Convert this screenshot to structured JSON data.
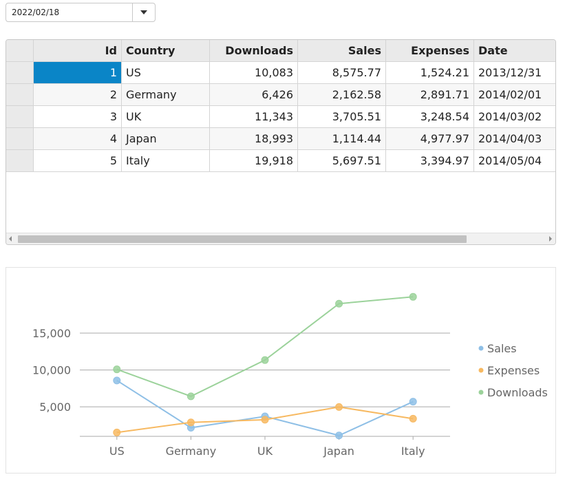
{
  "datepicker": {
    "value": "2022/02/18"
  },
  "grid": {
    "columns": [
      "Id",
      "Country",
      "Downloads",
      "Sales",
      "Expenses",
      "Date"
    ],
    "rows": [
      [
        "1",
        "US",
        "10,083",
        "8,575.77",
        "1,524.21",
        "2013/12/31"
      ],
      [
        "2",
        "Germany",
        "6,426",
        "2,162.58",
        "2,891.71",
        "2014/02/01"
      ],
      [
        "3",
        "UK",
        "11,343",
        "3,705.51",
        "3,248.54",
        "2014/03/02"
      ],
      [
        "4",
        "Japan",
        "18,993",
        "1,114.44",
        "4,977.97",
        "2014/04/03"
      ],
      [
        "5",
        "Italy",
        "19,918",
        "5,697.51",
        "3,394.97",
        "2014/05/04"
      ]
    ],
    "selected_color": "#0a85c7"
  },
  "chart_data": {
    "type": "line",
    "categories": [
      "US",
      "Germany",
      "UK",
      "Japan",
      "Italy"
    ],
    "series": [
      {
        "name": "Sales",
        "values": [
          8575.77,
          2162.58,
          3705.51,
          1114.44,
          5697.51
        ],
        "color": "#8ebfe6"
      },
      {
        "name": "Expenses",
        "values": [
          1524.21,
          2891.71,
          3248.54,
          4977.97,
          3394.97
        ],
        "color": "#f7b961"
      },
      {
        "name": "Downloads",
        "values": [
          10083,
          6426,
          11343,
          18993,
          19918
        ],
        "color": "#9bd29a"
      }
    ],
    "yticks": [
      "5,000",
      "10,000",
      "15,000"
    ],
    "ytick_values": [
      5000,
      10000,
      15000
    ],
    "ylim": [
      1000,
      22000
    ],
    "grid": true,
    "legend_position": "right"
  }
}
